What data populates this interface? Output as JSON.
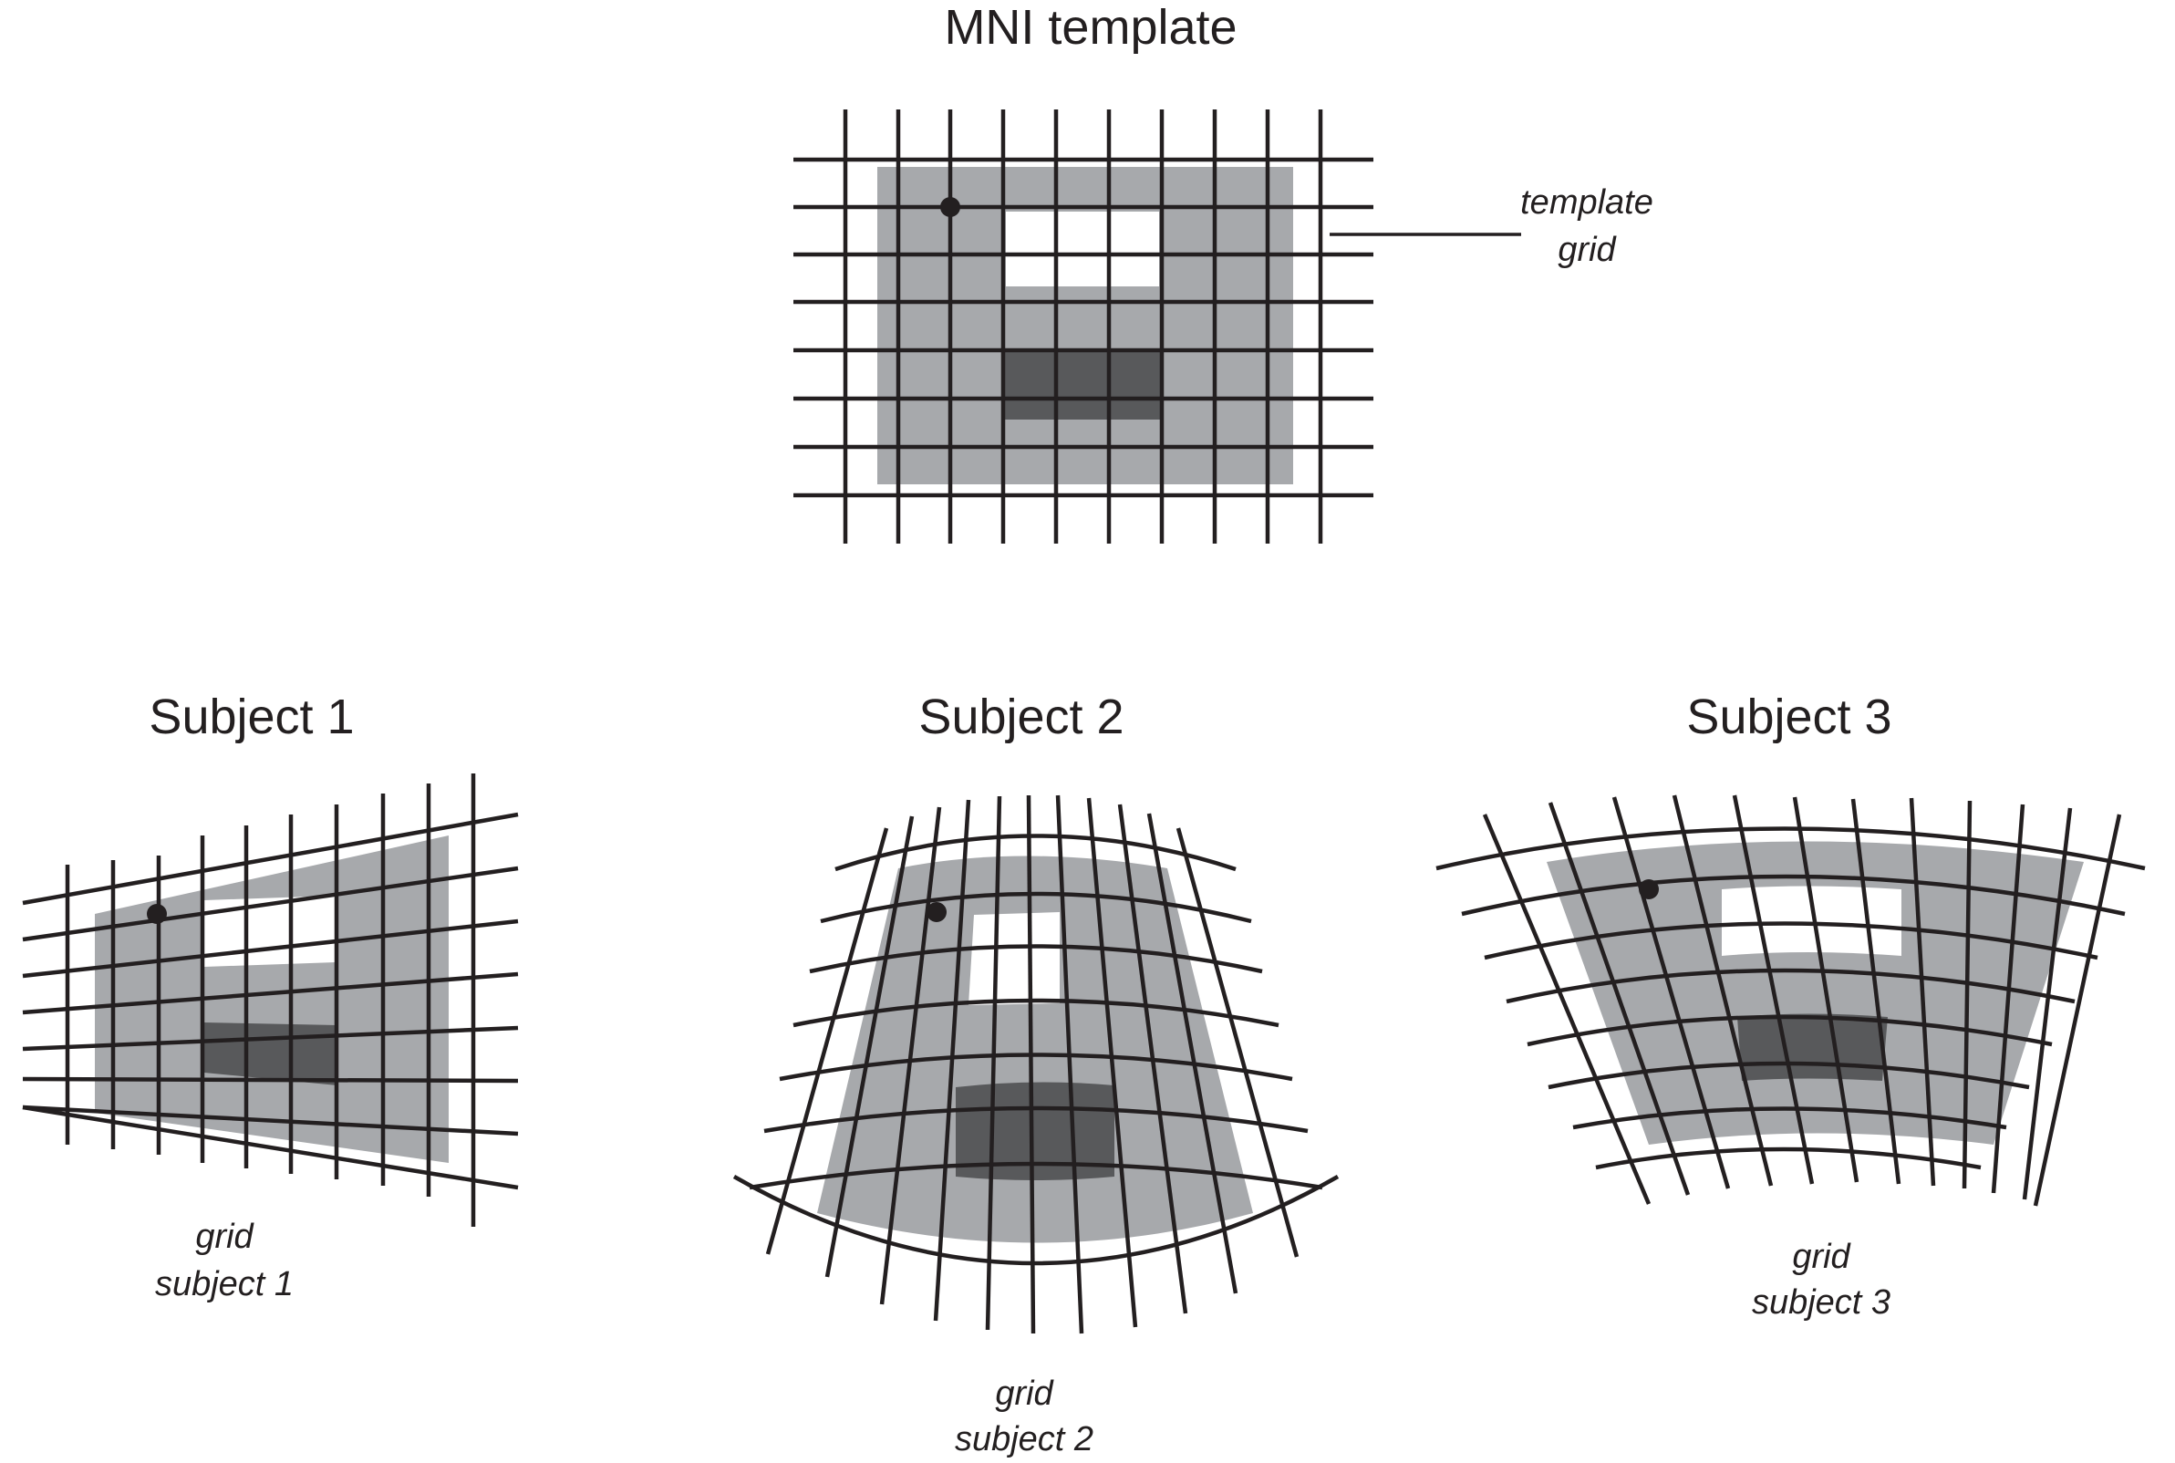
{
  "figure": {
    "panels": [
      {
        "id": "template",
        "title": "MNI template",
        "label_lines": [
          "template",
          "grid"
        ]
      },
      {
        "id": "subject1",
        "title": "Subject 1",
        "label_lines": [
          "grid",
          "subject 1"
        ]
      },
      {
        "id": "subject2",
        "title": "Subject 2",
        "label_lines": [
          "grid",
          "subject 2"
        ]
      },
      {
        "id": "subject3",
        "title": "Subject 3",
        "label_lines": [
          "grid",
          "subject 3"
        ]
      }
    ],
    "colors": {
      "brain": "#a7a9ac",
      "dark_region": "#58595b",
      "hole": "#ffffff",
      "grid": "#231f20",
      "marker": "#231f20",
      "text": "#231f20"
    }
  }
}
